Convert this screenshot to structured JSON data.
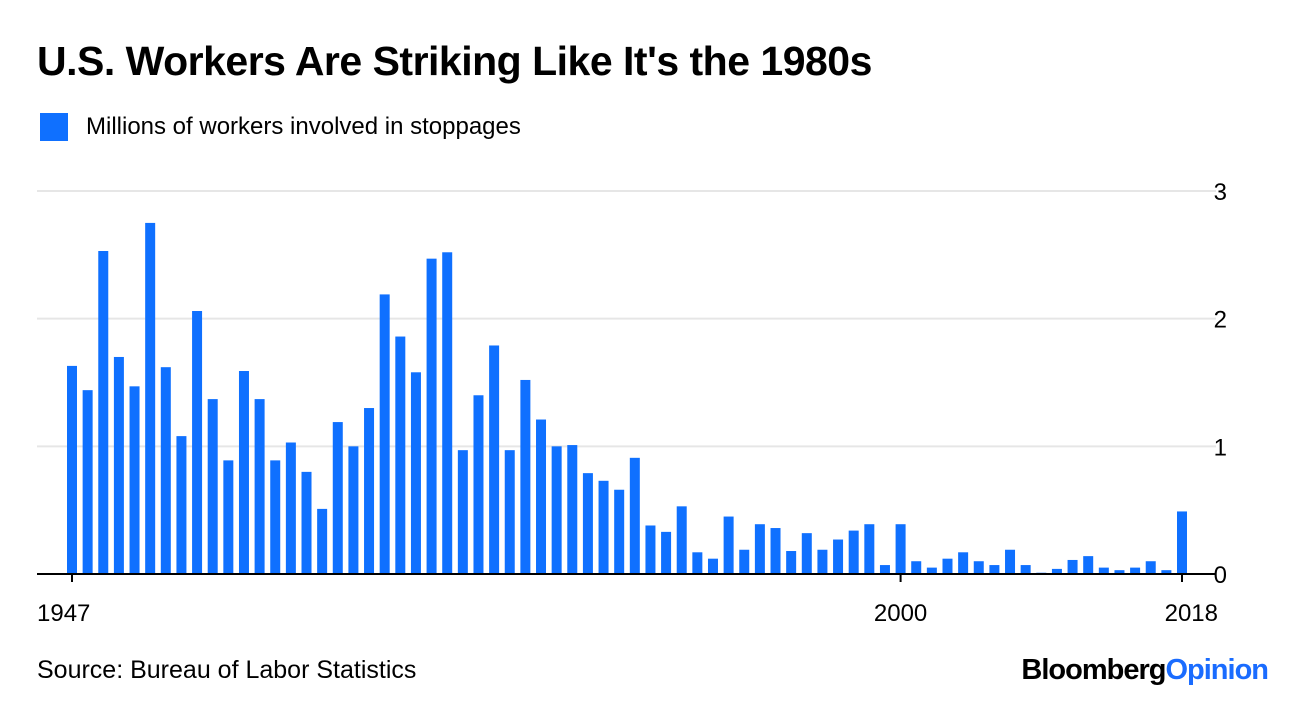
{
  "colors": {
    "bar": "#0f70ff",
    "grid": "#e6e6e6",
    "axis": "#000000",
    "brand_accent": "#1a6cff"
  },
  "footer": {
    "source": "Source: Bureau of Labor Statistics",
    "brand_main": "Bloomberg",
    "brand_accent": "Opinion"
  },
  "chart_data": {
    "type": "bar",
    "title": "U.S. Workers Are Striking Like It's the 1980s",
    "legend": "Millions of workers involved in stoppages",
    "xlabel": "",
    "ylabel": "",
    "ylim": [
      0,
      3
    ],
    "y_ticks": [
      0,
      1,
      2,
      3
    ],
    "y_tick_labels": [
      "0",
      "1",
      "2",
      "3"
    ],
    "x_tick_labels": [
      {
        "year": 1947,
        "label": "1947"
      },
      {
        "year": 2000,
        "label": "2000"
      },
      {
        "year": 2018,
        "label": "2018"
      }
    ],
    "categories": [
      1947,
      1948,
      1949,
      1950,
      1951,
      1952,
      1953,
      1954,
      1955,
      1956,
      1957,
      1958,
      1959,
      1960,
      1961,
      1962,
      1963,
      1964,
      1965,
      1966,
      1967,
      1968,
      1969,
      1970,
      1971,
      1972,
      1973,
      1974,
      1975,
      1976,
      1977,
      1978,
      1979,
      1980,
      1981,
      1982,
      1983,
      1984,
      1985,
      1986,
      1987,
      1988,
      1989,
      1990,
      1991,
      1992,
      1993,
      1994,
      1995,
      1996,
      1997,
      1998,
      1999,
      2000,
      2001,
      2002,
      2003,
      2004,
      2005,
      2006,
      2007,
      2008,
      2009,
      2010,
      2011,
      2012,
      2013,
      2014,
      2015,
      2016,
      2017,
      2018
    ],
    "values": [
      1.63,
      1.44,
      2.53,
      1.7,
      1.47,
      2.75,
      1.62,
      1.08,
      2.06,
      1.37,
      0.89,
      1.59,
      1.37,
      0.89,
      1.03,
      0.8,
      0.51,
      1.19,
      1.0,
      1.3,
      2.19,
      1.86,
      1.58,
      2.47,
      2.52,
      0.97,
      1.4,
      1.79,
      0.97,
      1.52,
      1.21,
      1.0,
      1.01,
      0.79,
      0.73,
      0.66,
      0.91,
      0.38,
      0.33,
      0.53,
      0.17,
      0.12,
      0.45,
      0.19,
      0.39,
      0.36,
      0.18,
      0.32,
      0.19,
      0.27,
      0.34,
      0.39,
      0.07,
      0.39,
      0.1,
      0.05,
      0.12,
      0.17,
      0.1,
      0.07,
      0.19,
      0.07,
      0.01,
      0.04,
      0.11,
      0.14,
      0.05,
      0.03,
      0.05,
      0.1,
      0.03,
      0.49
    ]
  }
}
